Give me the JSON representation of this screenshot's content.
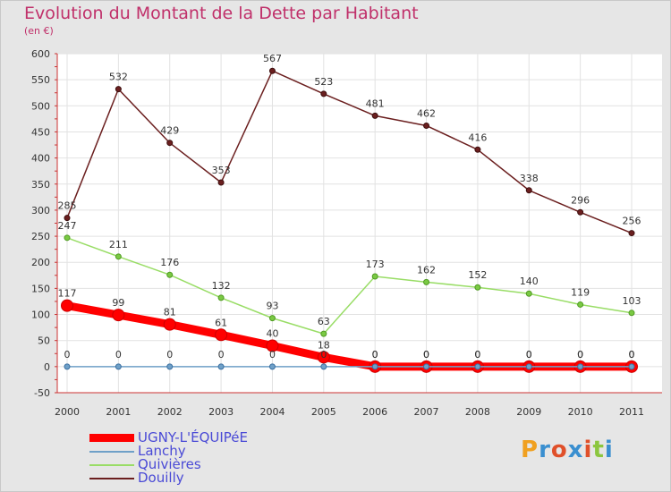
{
  "header": {
    "title": "Evolution du Montant de la Dette par Habitant",
    "subtitle": "(en €)"
  },
  "logo": {
    "text": "Proxiti",
    "colors": [
      "#f0a020",
      "#3a8fd0",
      "#e0502a",
      "#3a8fd0",
      "#e0502a",
      "#8cc63f",
      "#3a8fd0"
    ]
  },
  "chart_data": {
    "type": "line",
    "x": [
      "2000",
      "2001",
      "2002",
      "2003",
      "2004",
      "2005",
      "2006",
      "2007",
      "2008",
      "2009",
      "2010",
      "2011"
    ],
    "ylim": [
      -50,
      600
    ],
    "yticks": [
      "-50",
      "0",
      "50",
      "100",
      "150",
      "200",
      "250",
      "300",
      "350",
      "400",
      "450",
      "500",
      "550",
      "600"
    ],
    "grid": true,
    "legend_position": "bottom-left",
    "series": [
      {
        "name": "UGNY-L'ÉQUIPéE",
        "color": "#ff0000",
        "values": [
          117,
          99,
          81,
          61,
          40,
          18,
          0,
          0,
          0,
          0,
          0,
          0
        ]
      },
      {
        "name": "Lanchy",
        "color": "#6fa0c8",
        "values": [
          0,
          0,
          0,
          0,
          0,
          0,
          0,
          0,
          0,
          0,
          0,
          0
        ]
      },
      {
        "name": "Quivières",
        "color": "#99dd66",
        "values": [
          247,
          211,
          176,
          132,
          93,
          63,
          173,
          162,
          152,
          140,
          119,
          103
        ]
      },
      {
        "name": "Douilly",
        "color": "#6b1f1f",
        "values": [
          285,
          532,
          429,
          353,
          567,
          523,
          481,
          462,
          416,
          338,
          296,
          256
        ]
      }
    ]
  }
}
